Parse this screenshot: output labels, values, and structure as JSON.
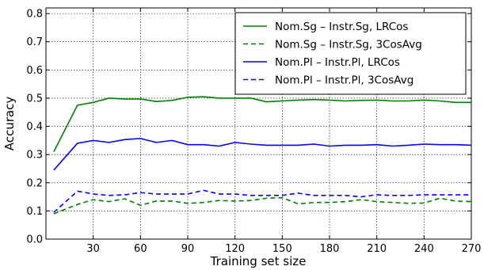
{
  "chart_data": {
    "type": "line",
    "title": "",
    "xlabel": "Training set size",
    "ylabel": "Accuracy",
    "xlim": [
      0,
      270
    ],
    "ylim": [
      0.0,
      0.82
    ],
    "xticks": [
      30,
      60,
      90,
      120,
      150,
      180,
      210,
      240,
      270
    ],
    "yticks": [
      0.0,
      0.1,
      0.2,
      0.3,
      0.4,
      0.5,
      0.6,
      0.7,
      0.8
    ],
    "ytick_labels": [
      "0.0",
      "0.1",
      "0.2",
      "0.3",
      "0.4",
      "0.5",
      "0.6",
      "0.7",
      "0.8"
    ],
    "grid": true,
    "legend_position": "top-right",
    "x": [
      5,
      20,
      30,
      40,
      50,
      60,
      70,
      80,
      90,
      100,
      110,
      120,
      130,
      140,
      150,
      160,
      170,
      180,
      190,
      200,
      210,
      220,
      230,
      240,
      250,
      260,
      270
    ],
    "series": [
      {
        "name": "Nom.Sg – Instr.Sg, LRCos",
        "color": "#008000",
        "style": "solid",
        "values": [
          0.31,
          0.475,
          0.485,
          0.5,
          0.497,
          0.497,
          0.488,
          0.492,
          0.503,
          0.505,
          0.5,
          0.5,
          0.5,
          0.487,
          0.49,
          0.493,
          0.495,
          0.493,
          0.49,
          0.492,
          0.493,
          0.49,
          0.49,
          0.493,
          0.49,
          0.485,
          0.485
        ]
      },
      {
        "name": "Nom.Sg – Instr.Sg, 3CosAvg",
        "color": "#008000",
        "style": "dashed",
        "values": [
          0.09,
          0.123,
          0.14,
          0.133,
          0.143,
          0.12,
          0.135,
          0.135,
          0.127,
          0.13,
          0.137,
          0.135,
          0.137,
          0.145,
          0.147,
          0.125,
          0.13,
          0.13,
          0.133,
          0.14,
          0.133,
          0.13,
          0.127,
          0.128,
          0.145,
          0.135,
          0.133
        ]
      },
      {
        "name": "Nom.Pl – Instr.Pl, LRCos",
        "color": "#0000ff",
        "style": "solid",
        "values": [
          0.245,
          0.34,
          0.35,
          0.343,
          0.353,
          0.357,
          0.343,
          0.35,
          0.335,
          0.335,
          0.33,
          0.343,
          0.337,
          0.333,
          0.333,
          0.333,
          0.337,
          0.33,
          0.333,
          0.333,
          0.335,
          0.33,
          0.333,
          0.337,
          0.335,
          0.335,
          0.333
        ]
      },
      {
        "name": "Nom.Pl – Instr.Pl, 3CosAvg",
        "color": "#0000ff",
        "style": "dashed",
        "values": [
          0.095,
          0.17,
          0.16,
          0.155,
          0.157,
          0.165,
          0.16,
          0.16,
          0.16,
          0.173,
          0.16,
          0.16,
          0.155,
          0.155,
          0.155,
          0.163,
          0.155,
          0.155,
          0.155,
          0.15,
          0.157,
          0.155,
          0.155,
          0.157,
          0.157,
          0.157,
          0.157
        ]
      }
    ]
  }
}
